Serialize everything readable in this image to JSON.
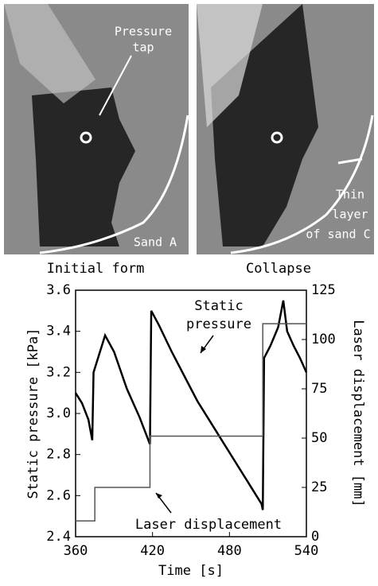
{
  "photos": [
    {
      "caption": "Initial form",
      "labels": [
        [
          "Pressure",
          "tap"
        ],
        [
          "Sand A"
        ]
      ]
    },
    {
      "caption": "Collapse",
      "labels": [
        [
          "Thin",
          "layer",
          "of sand C"
        ]
      ]
    }
  ],
  "chart_data": {
    "type": "line",
    "xlabel": "Time  [s]",
    "ylabel": "Static pressure  [kPa]",
    "y2label": "Laser displacement  [mm]",
    "xlim": [
      360,
      540
    ],
    "xticks": [
      360,
      420,
      480,
      540
    ],
    "ylim": [
      2.4,
      3.6
    ],
    "yticks": [
      2.4,
      2.6,
      2.8,
      {
        "value": 3.0,
        "label": "3.0"
      },
      3.2,
      3.4,
      3.6
    ],
    "y2lim": [
      0,
      125
    ],
    "y2ticks": [
      0,
      25,
      50,
      75,
      100,
      125
    ],
    "annotations": [
      [
        "Static",
        "pressure"
      ],
      [
        "Laser displacement"
      ]
    ],
    "series": [
      {
        "name": "Static pressure",
        "color": "#000000",
        "x": [
          360,
          365,
          370,
          373,
          374,
          378,
          383,
          390,
          400,
          410,
          418,
          419,
          425,
          435,
          445,
          455,
          465,
          475,
          485,
          495,
          505,
          506,
          507,
          512,
          518,
          522,
          525,
          530,
          535,
          540
        ],
        "values": [
          3.1,
          3.05,
          2.97,
          2.87,
          3.2,
          3.28,
          3.38,
          3.3,
          3.12,
          2.98,
          2.85,
          3.5,
          3.43,
          3.3,
          3.18,
          3.06,
          2.96,
          2.86,
          2.76,
          2.66,
          2.56,
          2.53,
          3.27,
          3.33,
          3.42,
          3.55,
          3.4,
          3.33,
          3.27,
          3.2
        ]
      },
      {
        "name": "Laser displacement",
        "color": "#555555",
        "axis": "y2",
        "x": [
          360,
          375,
          375,
          418,
          418,
          506,
          506,
          540
        ],
        "values": [
          8,
          8,
          25,
          25,
          51,
          51,
          108,
          108
        ]
      }
    ]
  }
}
